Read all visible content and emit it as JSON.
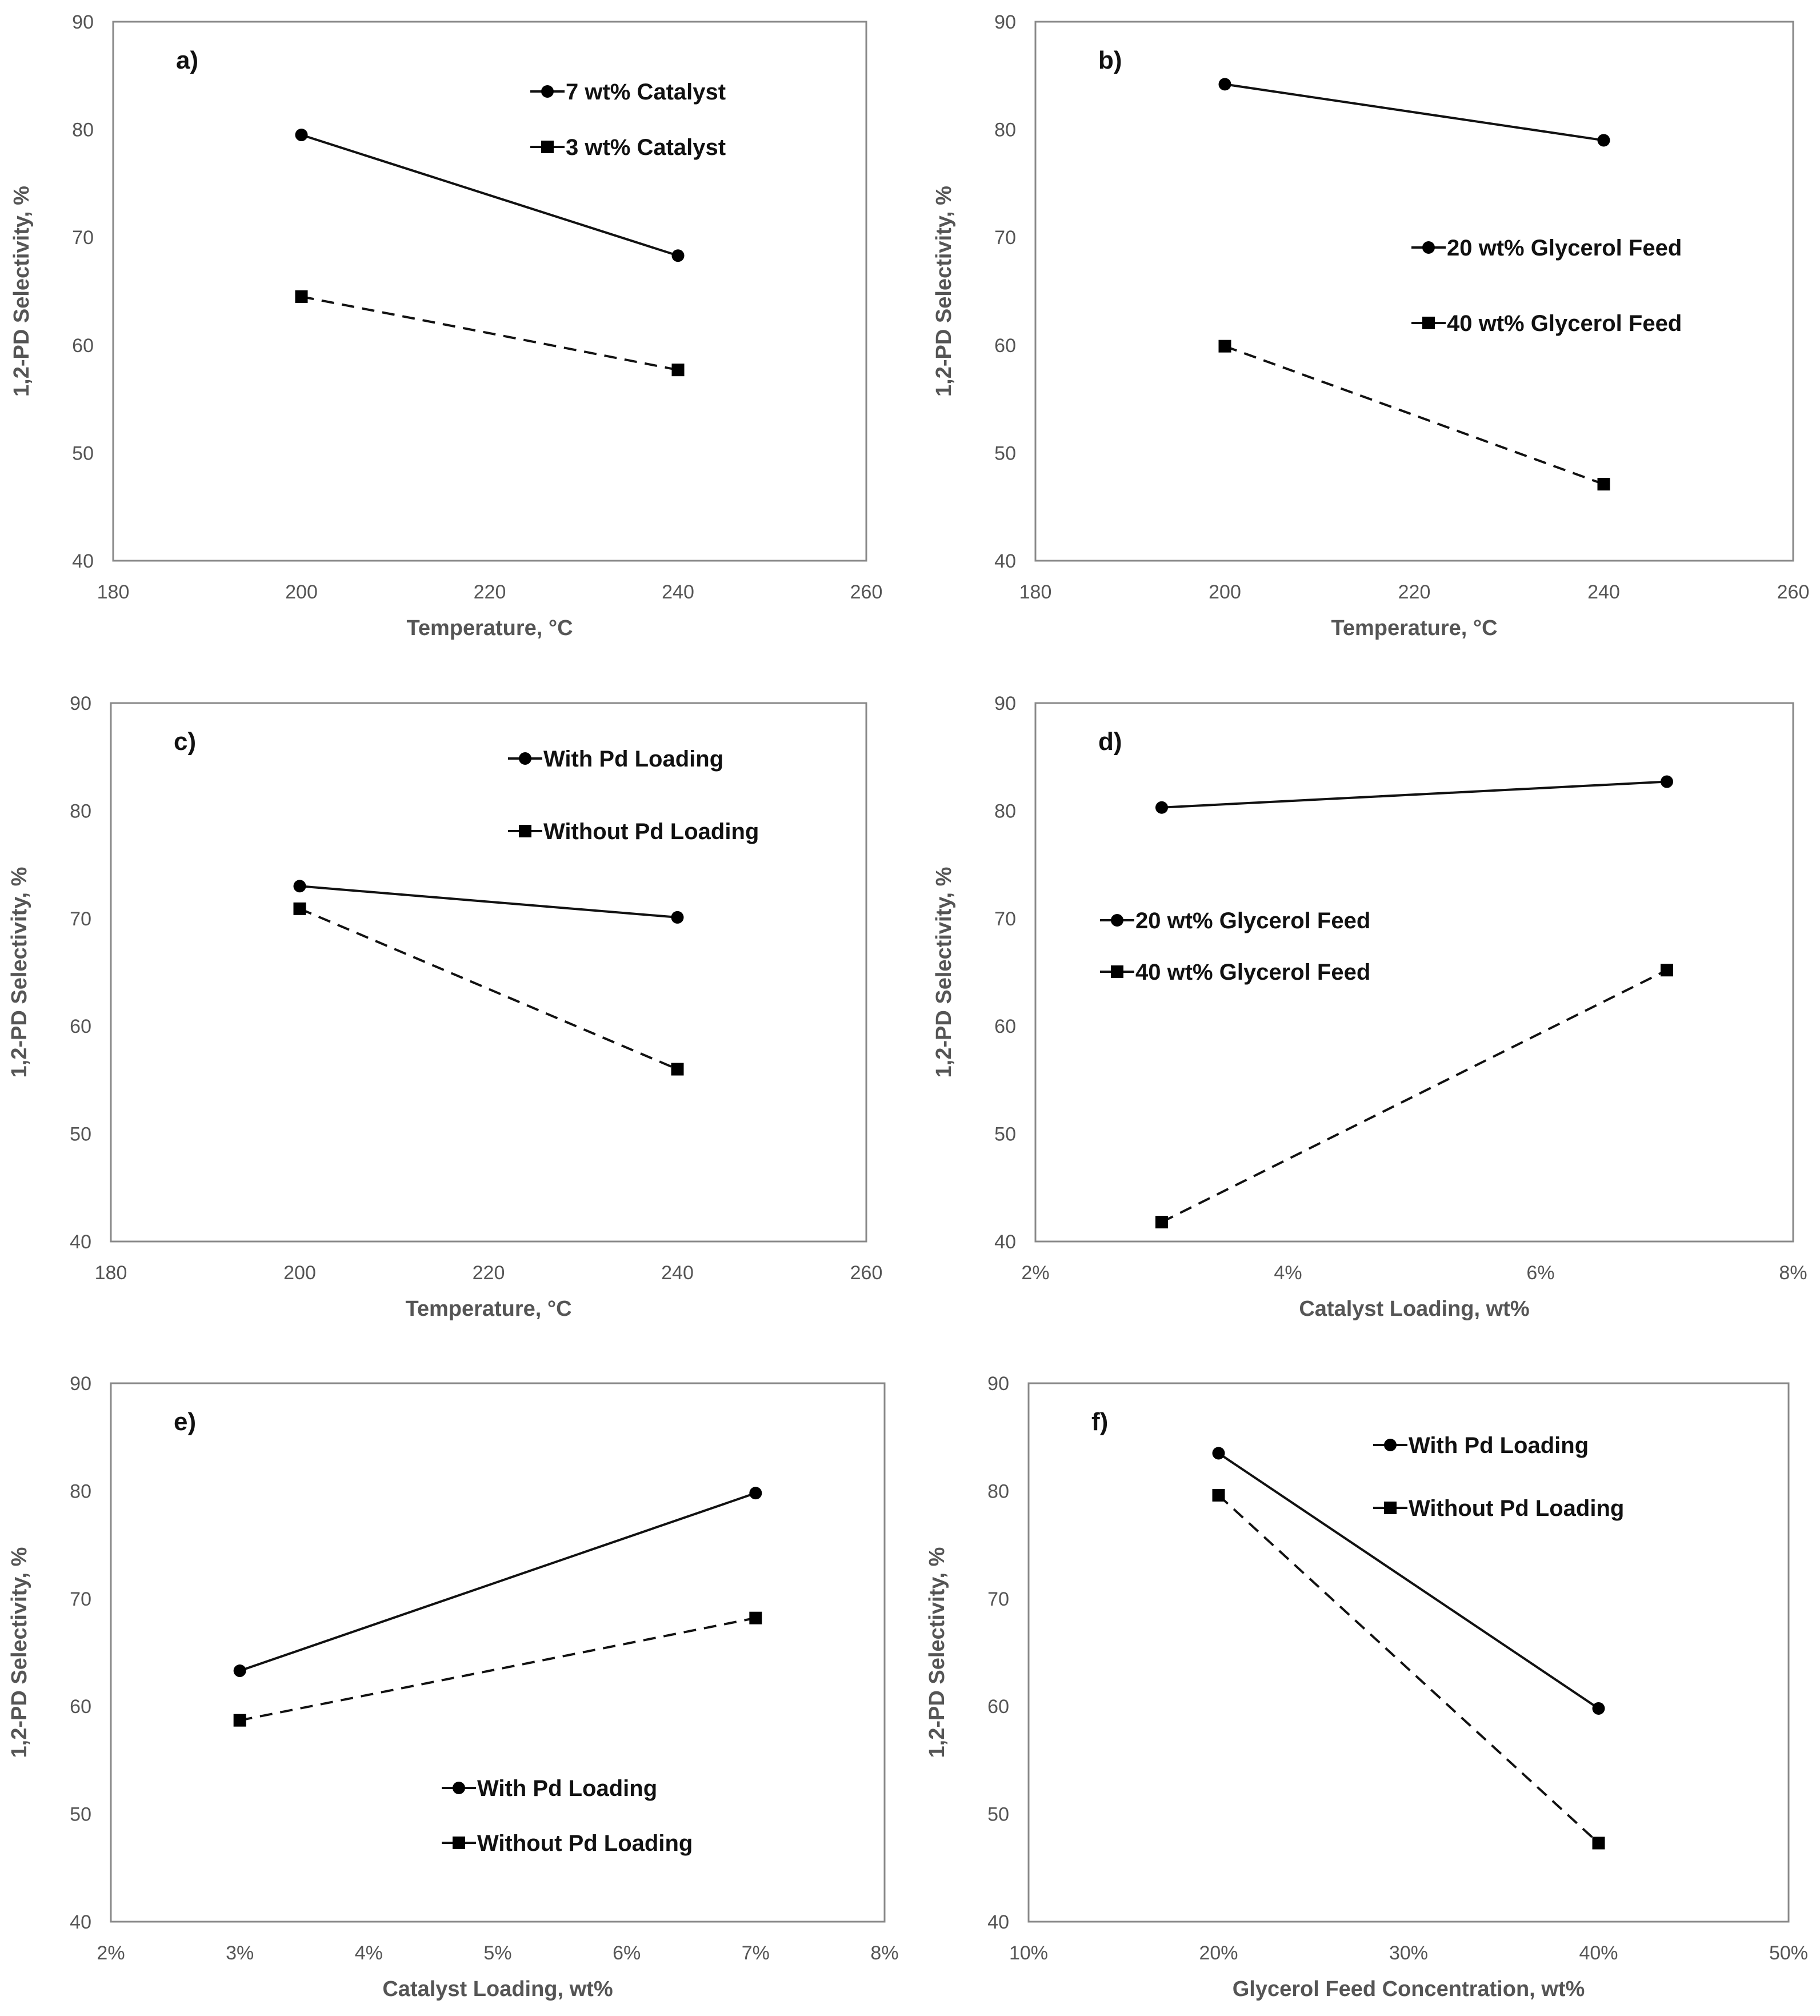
{
  "chart_data": [
    {
      "type": "line",
      "label": "a)",
      "xlabel": "Temperature, °C",
      "ylabel": "1,2-PD Selectivity, %",
      "xlim": [
        180,
        260
      ],
      "ylim": [
        40,
        90
      ],
      "xticks": [
        180,
        200,
        220,
        240,
        260
      ],
      "xtick_labels": [
        "180",
        "200",
        "220",
        "240",
        "260"
      ],
      "yticks": [
        40,
        50,
        60,
        70,
        80,
        90
      ],
      "ytick_labels": [
        "40",
        "50",
        "60",
        "70",
        "80",
        "90"
      ],
      "legend_position": "top-right",
      "series": [
        {
          "name": "7 wt% Catalyst",
          "marker": "circle",
          "style": "solid",
          "x": [
            200,
            240
          ],
          "values": [
            79.5,
            68.3
          ]
        },
        {
          "name": "3 wt% Catalyst",
          "marker": "square",
          "style": "dashed",
          "x": [
            200,
            240
          ],
          "values": [
            64.5,
            57.7
          ]
        }
      ]
    },
    {
      "type": "line",
      "label": "b)",
      "xlabel": "Temperature, °C",
      "ylabel": "1,2-PD Selectivity, %",
      "xlim": [
        180,
        260
      ],
      "ylim": [
        40,
        90
      ],
      "xticks": [
        180,
        200,
        220,
        240,
        260
      ],
      "xtick_labels": [
        "180",
        "200",
        "220",
        "240",
        "260"
      ],
      "yticks": [
        40,
        50,
        60,
        70,
        80,
        90
      ],
      "ytick_labels": [
        "40",
        "50",
        "60",
        "70",
        "80",
        "90"
      ],
      "legend_position": "center-right",
      "series": [
        {
          "name": "20 wt% Glycerol Feed",
          "marker": "circle",
          "style": "solid",
          "x": [
            200,
            240
          ],
          "values": [
            84.2,
            79.0
          ]
        },
        {
          "name": "40 wt% Glycerol Feed",
          "marker": "square",
          "style": "dashed",
          "x": [
            200,
            240
          ],
          "values": [
            59.9,
            47.1
          ]
        }
      ]
    },
    {
      "type": "line",
      "label": "c)",
      "xlabel": "Temperature, °C",
      "ylabel": "1,2-PD Selectivity, %",
      "xlim": [
        180,
        260
      ],
      "ylim": [
        40,
        90
      ],
      "xticks": [
        180,
        200,
        220,
        240,
        260
      ],
      "xtick_labels": [
        "180",
        "200",
        "220",
        "240",
        "260"
      ],
      "yticks": [
        40,
        50,
        60,
        70,
        80,
        90
      ],
      "ytick_labels": [
        "40",
        "50",
        "60",
        "70",
        "80",
        "90"
      ],
      "legend_position": "top-right",
      "series": [
        {
          "name": "With Pd Loading",
          "marker": "circle",
          "style": "solid",
          "x": [
            200,
            240
          ],
          "values": [
            73.0,
            70.1
          ]
        },
        {
          "name": "Without Pd Loading",
          "marker": "square",
          "style": "dashed",
          "x": [
            200,
            240
          ],
          "values": [
            70.9,
            56.0
          ]
        }
      ]
    },
    {
      "type": "line",
      "label": "d)",
      "xlabel": "Catalyst Loading, wt%",
      "ylabel": "1,2-PD Selectivity, %",
      "xlim": [
        2,
        8
      ],
      "ylim": [
        40,
        90
      ],
      "xticks": [
        2,
        4,
        6,
        8
      ],
      "xtick_labels": [
        "2%",
        "4%",
        "6%",
        "8%"
      ],
      "yticks": [
        40,
        50,
        60,
        70,
        80,
        90
      ],
      "ytick_labels": [
        "40",
        "50",
        "60",
        "70",
        "80",
        "90"
      ],
      "legend_position": "center-left",
      "series": [
        {
          "name": "20 wt% Glycerol Feed",
          "marker": "circle",
          "style": "solid",
          "x": [
            3,
            7
          ],
          "values": [
            80.3,
            82.7
          ]
        },
        {
          "name": "40 wt% Glycerol Feed",
          "marker": "square",
          "style": "dashed",
          "x": [
            3,
            7
          ],
          "values": [
            41.8,
            65.2
          ]
        }
      ]
    },
    {
      "type": "line",
      "label": "e)",
      "xlabel": "Catalyst Loading, wt%",
      "ylabel": "1,2-PD Selectivity, %",
      "xlim": [
        2,
        8
      ],
      "ylim": [
        40,
        90
      ],
      "xticks": [
        2,
        3,
        4,
        5,
        6,
        7,
        8
      ],
      "xtick_labels": [
        "2%",
        "3%",
        "4%",
        "5%",
        "6%",
        "7%",
        "8%"
      ],
      "yticks": [
        40,
        50,
        60,
        70,
        80,
        90
      ],
      "ytick_labels": [
        "40",
        "50",
        "60",
        "70",
        "80",
        "90"
      ],
      "legend_position": "bottom-center",
      "series": [
        {
          "name": "With Pd Loading",
          "marker": "circle",
          "style": "solid",
          "x": [
            3,
            7
          ],
          "values": [
            63.3,
            79.8
          ]
        },
        {
          "name": "Without Pd Loading",
          "marker": "square",
          "style": "dashed",
          "x": [
            3,
            7
          ],
          "values": [
            58.7,
            68.2
          ]
        }
      ]
    },
    {
      "type": "line",
      "label": "f)",
      "xlabel": "Glycerol Feed Concentration, wt%",
      "ylabel": "1,2-PD Selectivity, %",
      "xlim": [
        10,
        50
      ],
      "ylim": [
        40,
        90
      ],
      "xticks": [
        10,
        20,
        30,
        40,
        50
      ],
      "xtick_labels": [
        "10%",
        "20%",
        "30%",
        "40%",
        "50%"
      ],
      "yticks": [
        40,
        50,
        60,
        70,
        80,
        90
      ],
      "ytick_labels": [
        "40",
        "50",
        "60",
        "70",
        "80",
        "90"
      ],
      "legend_position": "top-right",
      "series": [
        {
          "name": "With Pd Loading",
          "marker": "circle",
          "style": "solid",
          "x": [
            20,
            40
          ],
          "values": [
            83.5,
            59.8
          ]
        },
        {
          "name": "Without Pd Loading",
          "marker": "square",
          "style": "dashed",
          "x": [
            20,
            40
          ],
          "values": [
            79.6,
            47.3
          ]
        }
      ]
    }
  ]
}
